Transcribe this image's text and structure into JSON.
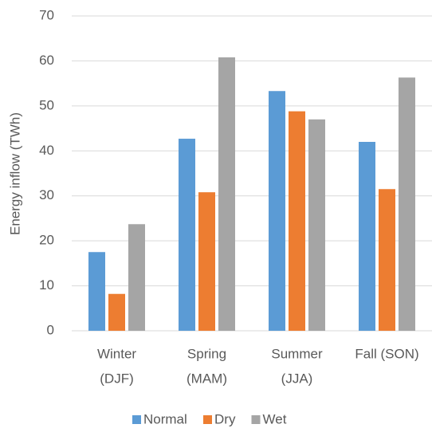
{
  "chart_data": {
    "type": "bar",
    "y_label": "Energy inflow (TWh)",
    "categories": [
      [
        "Winter",
        "(DJF)"
      ],
      [
        "Spring",
        "(MAM)"
      ],
      [
        "Summer",
        "(JJA)"
      ],
      [
        "Fall (SON)"
      ]
    ],
    "series": [
      {
        "name": "Normal",
        "color": "#5b9bd5",
        "values": [
          17.5,
          42.7,
          53.3,
          42.0
        ]
      },
      {
        "name": "Dry",
        "color": "#ed7d31",
        "values": [
          8.2,
          30.8,
          48.8,
          31.5
        ]
      },
      {
        "name": "Wet",
        "color": "#a5a5a5",
        "values": [
          23.7,
          60.8,
          47.0,
          56.3
        ]
      }
    ],
    "ylim": [
      0,
      70
    ],
    "yticks": [
      0,
      10,
      20,
      30,
      40,
      50,
      60,
      70
    ],
    "grid": true,
    "legend": "bottom"
  }
}
